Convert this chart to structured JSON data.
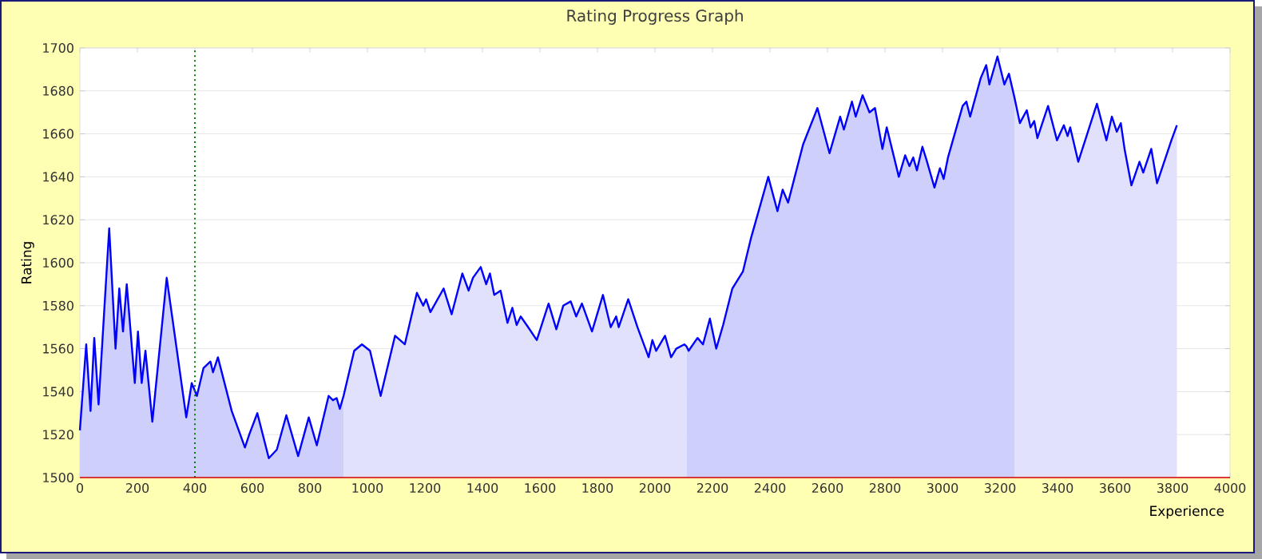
{
  "chart_data": {
    "type": "area",
    "title": "Rating Progress Graph",
    "xlabel": "Experience",
    "ylabel": "Rating",
    "xlim": [
      0,
      4000
    ],
    "xticks": [
      0,
      200,
      400,
      600,
      800,
      1000,
      1200,
      1400,
      1600,
      1800,
      2000,
      2200,
      2400,
      2600,
      2800,
      3000,
      3200,
      3400,
      3600,
      3800,
      4000
    ],
    "ylim": [
      1500,
      1700
    ],
    "yticks": [
      1500,
      1520,
      1540,
      1560,
      1580,
      1600,
      1620,
      1640,
      1660,
      1680,
      1700
    ],
    "grid": "y",
    "ref_lines": [
      {
        "axis": "x",
        "value": 400,
        "color": "#008000",
        "line_style": "dotted"
      }
    ],
    "series": [
      {
        "color": "#cfcffb",
        "x": [
          0,
          22,
          37,
          50,
          65,
          102,
          124,
          137,
          150,
          163,
          191,
          202,
          215,
          228,
          252,
          302,
          370,
          389,
          407,
          430,
          454,
          463,
          480,
          528,
          574,
          589,
          617,
          657,
          685,
          718,
          759,
          796,
          824,
          865,
          880,
          893,
          904,
          917
        ],
        "values": [
          1522,
          1562,
          1531,
          1565,
          1534,
          1616,
          1560,
          1588,
          1568,
          1590,
          1544,
          1568,
          1544,
          1559,
          1526,
          1593,
          1528,
          1544,
          1538,
          1551,
          1554,
          1549,
          1556,
          1531,
          1514,
          1520,
          1530,
          1509,
          1513,
          1529,
          1510,
          1528,
          1515,
          1538,
          1536,
          1537,
          1532,
          1538
        ]
      },
      {
        "color": "#e1e1fc",
        "x": [
          917,
          954,
          981,
          1009,
          1046,
          1096,
          1130,
          1172,
          1194,
          1204,
          1219,
          1265,
          1293,
          1330,
          1352,
          1367,
          1394,
          1413,
          1426,
          1441,
          1463,
          1487,
          1504,
          1519,
          1533,
          1559,
          1589,
          1630,
          1657,
          1681,
          1707,
          1726,
          1746,
          1781,
          1819,
          1846,
          1865,
          1874,
          1907,
          1939,
          1978,
          1991,
          2004,
          2035,
          2056,
          2074,
          2102,
          2110
        ],
        "values": [
          1538,
          1559,
          1562,
          1559,
          1538,
          1566,
          1562,
          1586,
          1580,
          1583,
          1577,
          1588,
          1576,
          1595,
          1587,
          1593,
          1598,
          1590,
          1595,
          1585,
          1587,
          1572,
          1579,
          1571,
          1575,
          1570,
          1564,
          1581,
          1569,
          1580,
          1582,
          1575,
          1581,
          1568,
          1585,
          1570,
          1575,
          1570,
          1583,
          1570,
          1556,
          1564,
          1559,
          1566,
          1556,
          1560,
          1562,
          1561
        ]
      },
      {
        "color": "#cfcffb",
        "x": [
          2110,
          2117,
          2148,
          2167,
          2191,
          2213,
          2237,
          2269,
          2306,
          2333,
          2394,
          2426,
          2444,
          2463,
          2515,
          2565,
          2607,
          2644,
          2657,
          2685,
          2698,
          2722,
          2746,
          2765,
          2791,
          2806,
          2848,
          2870,
          2885,
          2898,
          2911,
          2930,
          2944,
          2972,
          2991,
          3004,
          3019,
          3070,
          3083,
          3096,
          3133,
          3152,
          3163,
          3191,
          3215,
          3231,
          3250
        ],
        "values": [
          1561,
          1559,
          1565,
          1562,
          1574,
          1560,
          1571,
          1588,
          1596,
          1611,
          1640,
          1624,
          1634,
          1628,
          1655,
          1672,
          1651,
          1668,
          1662,
          1675,
          1668,
          1678,
          1670,
          1672,
          1653,
          1663,
          1640,
          1650,
          1645,
          1649,
          1643,
          1654,
          1648,
          1635,
          1644,
          1639,
          1649,
          1673,
          1675,
          1668,
          1686,
          1692,
          1683,
          1696,
          1683,
          1688,
          1677
        ]
      },
      {
        "color": "#e1e1fc",
        "x": [
          3250,
          3269,
          3293,
          3306,
          3319,
          3330,
          3367,
          3398,
          3422,
          3435,
          3444,
          3472,
          3537,
          3570,
          3589,
          3606,
          3620,
          3633,
          3657,
          3685,
          3698,
          3726,
          3746,
          3796,
          3815
        ],
        "values": [
          1677,
          1665,
          1671,
          1663,
          1666,
          1658,
          1673,
          1657,
          1664,
          1659,
          1663,
          1647,
          1674,
          1657,
          1668,
          1661,
          1665,
          1653,
          1636,
          1647,
          1642,
          1653,
          1637,
          1657,
          1664
        ]
      },
      {
        "type": "line",
        "color": "#0000ff",
        "x": [
          0,
          22,
          37,
          50,
          65,
          102,
          124,
          137,
          150,
          163,
          191,
          202,
          215,
          228,
          252,
          302,
          370,
          389,
          407,
          430,
          454,
          463,
          480,
          528,
          574,
          589,
          617,
          657,
          685,
          718,
          759,
          796,
          824,
          865,
          880,
          893,
          904,
          917,
          954,
          981,
          1009,
          1046,
          1096,
          1130,
          1172,
          1194,
          1204,
          1219,
          1265,
          1293,
          1330,
          1352,
          1367,
          1394,
          1413,
          1426,
          1441,
          1463,
          1487,
          1504,
          1519,
          1533,
          1559,
          1589,
          1630,
          1657,
          1681,
          1707,
          1726,
          1746,
          1781,
          1819,
          1846,
          1865,
          1874,
          1907,
          1939,
          1978,
          1991,
          2004,
          2035,
          2056,
          2074,
          2102,
          2110,
          2117,
          2148,
          2167,
          2191,
          2213,
          2237,
          2269,
          2306,
          2333,
          2394,
          2426,
          2444,
          2463,
          2515,
          2565,
          2607,
          2644,
          2657,
          2685,
          2698,
          2722,
          2746,
          2765,
          2791,
          2806,
          2848,
          2870,
          2885,
          2898,
          2911,
          2930,
          2944,
          2972,
          2991,
          3004,
          3019,
          3070,
          3083,
          3096,
          3133,
          3152,
          3163,
          3191,
          3215,
          3231,
          3250,
          3269,
          3293,
          3306,
          3319,
          3330,
          3367,
          3398,
          3422,
          3435,
          3444,
          3472,
          3537,
          3570,
          3589,
          3606,
          3620,
          3633,
          3657,
          3685,
          3698,
          3726,
          3746,
          3796,
          3815
        ],
        "values": [
          1522,
          1562,
          1531,
          1565,
          1534,
          1616,
          1560,
          1588,
          1568,
          1590,
          1544,
          1568,
          1544,
          1559,
          1526,
          1593,
          1528,
          1544,
          1538,
          1551,
          1554,
          1549,
          1556,
          1531,
          1514,
          1520,
          1530,
          1509,
          1513,
          1529,
          1510,
          1528,
          1515,
          1538,
          1536,
          1537,
          1532,
          1538,
          1559,
          1562,
          1559,
          1538,
          1566,
          1562,
          1586,
          1580,
          1583,
          1577,
          1588,
          1576,
          1595,
          1587,
          1593,
          1598,
          1590,
          1595,
          1585,
          1587,
          1572,
          1579,
          1571,
          1575,
          1570,
          1564,
          1581,
          1569,
          1580,
          1582,
          1575,
          1581,
          1568,
          1585,
          1570,
          1575,
          1570,
          1583,
          1570,
          1556,
          1564,
          1559,
          1566,
          1556,
          1560,
          1562,
          1561,
          1559,
          1565,
          1562,
          1574,
          1560,
          1571,
          1588,
          1596,
          1611,
          1640,
          1624,
          1634,
          1628,
          1655,
          1672,
          1651,
          1668,
          1662,
          1675,
          1668,
          1678,
          1670,
          1672,
          1653,
          1663,
          1640,
          1650,
          1645,
          1649,
          1643,
          1654,
          1648,
          1635,
          1644,
          1639,
          1649,
          1673,
          1675,
          1668,
          1686,
          1692,
          1683,
          1696,
          1683,
          1688,
          1677,
          1665,
          1671,
          1663,
          1666,
          1658,
          1673,
          1657,
          1664,
          1659,
          1663,
          1647,
          1674,
          1657,
          1668,
          1661,
          1665,
          1653,
          1636,
          1647,
          1642,
          1653,
          1637,
          1657,
          1664
        ]
      }
    ]
  }
}
